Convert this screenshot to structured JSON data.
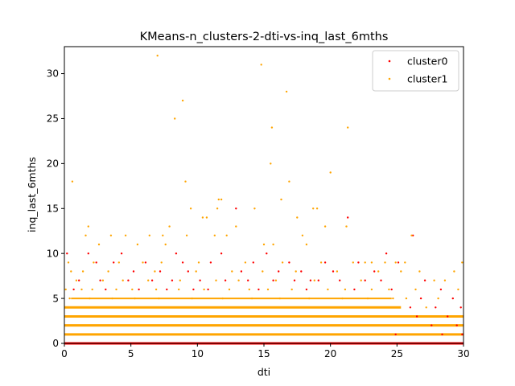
{
  "chart_data": {
    "type": "scatter",
    "title": "KMeans-n_clusters-2-dti-vs-inq_last_6mths",
    "xlabel": "dti",
    "ylabel": "inq_last_6mths",
    "xlim": [
      0,
      30
    ],
    "ylim": [
      0,
      33
    ],
    "x_ticks": [
      0,
      5,
      10,
      15,
      20,
      25,
      30
    ],
    "y_ticks": [
      0,
      5,
      10,
      15,
      20,
      25,
      30
    ],
    "grid": false,
    "legend_position": "top-right",
    "colors": {
      "cluster0": "#ff0000",
      "cluster1": "#ffa500"
    },
    "series": [
      {
        "name": "cluster0",
        "color": "#ff0000",
        "points": [
          [
            0.2,
            10
          ],
          [
            1.8,
            10
          ],
          [
            2.4,
            9
          ],
          [
            3.7,
            9
          ],
          [
            4.3,
            10
          ],
          [
            5.2,
            8
          ],
          [
            6.1,
            9
          ],
          [
            7.2,
            8
          ],
          [
            8.4,
            10
          ],
          [
            8.9,
            9
          ],
          [
            9.3,
            8
          ],
          [
            10.2,
            7
          ],
          [
            11.0,
            9
          ],
          [
            11.8,
            10
          ],
          [
            12.9,
            15
          ],
          [
            13.3,
            8
          ],
          [
            14.2,
            9
          ],
          [
            15.2,
            10
          ],
          [
            16.1,
            8
          ],
          [
            16.9,
            9
          ],
          [
            17.8,
            8
          ],
          [
            18.5,
            7
          ],
          [
            19.6,
            9
          ],
          [
            20.2,
            8
          ],
          [
            21.3,
            14
          ],
          [
            22.1,
            9
          ],
          [
            23.3,
            8
          ],
          [
            24.2,
            10
          ],
          [
            25.1,
            9
          ],
          [
            26.2,
            12
          ],
          [
            27.1,
            7
          ],
          [
            28.3,
            6
          ],
          [
            29.2,
            5
          ],
          [
            29.8,
            4
          ],
          [
            26.5,
            3
          ],
          [
            27.6,
            2
          ],
          [
            28.4,
            1
          ],
          [
            29.1,
            0
          ],
          [
            25.8,
            0
          ],
          [
            24.9,
            1
          ],
          [
            1.1,
            7
          ],
          [
            2.7,
            7
          ],
          [
            4.8,
            7
          ],
          [
            6.6,
            7
          ],
          [
            8.1,
            7
          ],
          [
            9.7,
            6
          ],
          [
            12.1,
            7
          ],
          [
            13.8,
            7
          ],
          [
            15.7,
            7
          ],
          [
            17.3,
            7
          ],
          [
            19.1,
            7
          ],
          [
            20.7,
            7
          ],
          [
            22.6,
            7
          ],
          [
            23.8,
            7
          ],
          [
            0.7,
            6
          ],
          [
            3.1,
            6
          ],
          [
            5.6,
            6
          ],
          [
            7.7,
            6
          ],
          [
            10.8,
            6
          ],
          [
            14.6,
            6
          ],
          [
            18.2,
            6
          ],
          [
            21.8,
            6
          ],
          [
            24.6,
            6
          ],
          [
            26.8,
            5
          ],
          [
            27.9,
            4
          ],
          [
            28.8,
            3
          ],
          [
            29.5,
            2
          ],
          [
            29.9,
            1
          ],
          [
            26.0,
            4
          ],
          [
            27.3,
            0
          ]
        ]
      },
      {
        "name": "cluster1",
        "color": "#ffa500",
        "points": [
          [
            0.6,
            18
          ],
          [
            1.6,
            12
          ],
          [
            1.8,
            13
          ],
          [
            2.6,
            11
          ],
          [
            3.5,
            12
          ],
          [
            4.6,
            12
          ],
          [
            5.5,
            11
          ],
          [
            6.4,
            12
          ],
          [
            7.0,
            32
          ],
          [
            7.4,
            12
          ],
          [
            7.6,
            11
          ],
          [
            7.9,
            13
          ],
          [
            8.3,
            25
          ],
          [
            8.9,
            27
          ],
          [
            9.1,
            18
          ],
          [
            9.5,
            15
          ],
          [
            9.2,
            12
          ],
          [
            10.4,
            14
          ],
          [
            10.7,
            14
          ],
          [
            11.3,
            12
          ],
          [
            11.6,
            16
          ],
          [
            11.8,
            16
          ],
          [
            11.5,
            15
          ],
          [
            12.2,
            12
          ],
          [
            12.9,
            13
          ],
          [
            14.3,
            15
          ],
          [
            14.8,
            31
          ],
          [
            15.0,
            11
          ],
          [
            15.6,
            24
          ],
          [
            15.5,
            20
          ],
          [
            15.7,
            11
          ],
          [
            16.3,
            16
          ],
          [
            16.7,
            28
          ],
          [
            16.9,
            18
          ],
          [
            17.5,
            14
          ],
          [
            17.9,
            12
          ],
          [
            18.2,
            11
          ],
          [
            18.7,
            15
          ],
          [
            19.0,
            15
          ],
          [
            19.6,
            13
          ],
          [
            20.0,
            19
          ],
          [
            21.2,
            13
          ],
          [
            21.3,
            24
          ],
          [
            22.6,
            9
          ],
          [
            23.1,
            9
          ],
          [
            24.1,
            9
          ],
          [
            24.9,
            9
          ],
          [
            25.6,
            9
          ],
          [
            26.1,
            12
          ],
          [
            29.9,
            9
          ],
          [
            0.3,
            9
          ],
          [
            2.2,
            9
          ],
          [
            4.1,
            9
          ],
          [
            5.9,
            9
          ],
          [
            7.3,
            9
          ],
          [
            10.1,
            9
          ],
          [
            13.6,
            9
          ],
          [
            16.4,
            9
          ],
          [
            19.3,
            9
          ],
          [
            21.7,
            9
          ],
          [
            0.5,
            8
          ],
          [
            1.4,
            8
          ],
          [
            3.3,
            8
          ],
          [
            6.8,
            8
          ],
          [
            9.9,
            8
          ],
          [
            12.6,
            8
          ],
          [
            14.9,
            8
          ],
          [
            17.4,
            8
          ],
          [
            20.5,
            8
          ],
          [
            23.6,
            8
          ],
          [
            25.3,
            8
          ],
          [
            26.7,
            8
          ],
          [
            27.8,
            7
          ],
          [
            28.6,
            7
          ],
          [
            29.3,
            8
          ],
          [
            29.6,
            6
          ],
          [
            28.1,
            5
          ],
          [
            27.2,
            4
          ],
          [
            26.4,
            6
          ],
          [
            25.7,
            5
          ],
          [
            0.9,
            7
          ],
          [
            2.9,
            7
          ],
          [
            4.4,
            7
          ],
          [
            6.3,
            7
          ],
          [
            8.7,
            7
          ],
          [
            11.4,
            7
          ],
          [
            13.1,
            7
          ],
          [
            15.9,
            7
          ],
          [
            18.8,
            7
          ],
          [
            22.3,
            7
          ],
          [
            0.1,
            6
          ],
          [
            1.3,
            6
          ],
          [
            2.1,
            6
          ],
          [
            3.9,
            6
          ],
          [
            5.1,
            6
          ],
          [
            6.9,
            6
          ],
          [
            8.6,
            6
          ],
          [
            10.5,
            6
          ],
          [
            12.4,
            6
          ],
          [
            13.9,
            6
          ],
          [
            15.3,
            6
          ],
          [
            17.1,
            6
          ],
          [
            19.8,
            6
          ],
          [
            21.1,
            6
          ],
          [
            23.1,
            6
          ],
          [
            24.4,
            6
          ],
          [
            0.4,
            5
          ],
          [
            1.9,
            5
          ],
          [
            3.6,
            5
          ],
          [
            5.3,
            5
          ],
          [
            7.1,
            5
          ],
          [
            9.6,
            5
          ],
          [
            11.9,
            5
          ],
          [
            14.1,
            5
          ],
          [
            16.2,
            5
          ],
          [
            18.4,
            5
          ],
          [
            20.9,
            5
          ],
          [
            22.8,
            5
          ],
          [
            24.7,
            5
          ]
        ]
      }
    ]
  }
}
